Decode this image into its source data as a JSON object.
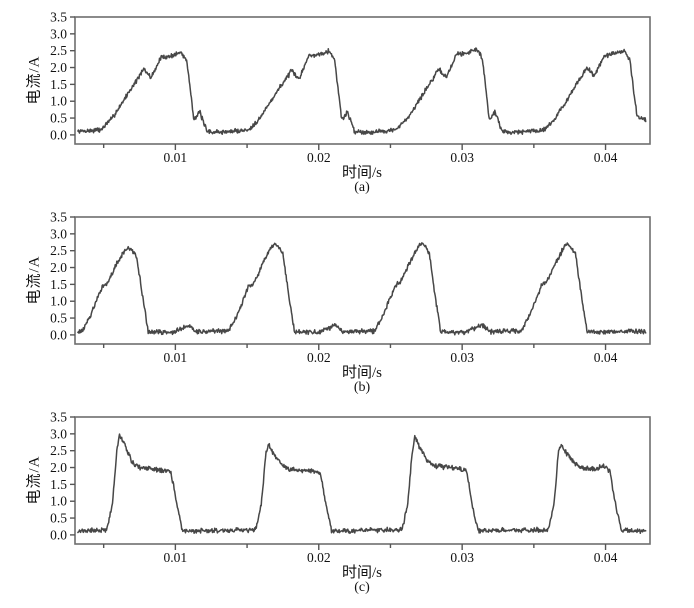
{
  "figure": {
    "background": "#ffffff",
    "curve_color": "#474747",
    "axis_color": "#6e6e6e",
    "tick_color": "#555555",
    "text_color": "#111111"
  },
  "chart_data": [
    {
      "type": "line",
      "label": "(a)",
      "xlabel": "时间/s",
      "ylabel": "电流/A",
      "xlim": [
        0.003,
        0.0431
      ],
      "ylim": [
        -0.27,
        3.5
      ],
      "x_major_ticks": [
        0.01,
        0.02,
        0.03,
        0.04
      ],
      "x_major_tick_labels": [
        "0.01",
        "0.02",
        "0.03",
        "0.04"
      ],
      "x_minor_ticks": [
        0.005,
        0.015,
        0.025,
        0.035
      ],
      "y_ticks": [
        0,
        0.5,
        1,
        1.5,
        2,
        2.5,
        3,
        3.5
      ],
      "y_tick_labels": [
        "0.0",
        "0.5",
        "1.0",
        "1.5",
        "2.0",
        "2.5",
        "3.0",
        "3.5"
      ],
      "period_s": 0.0103,
      "peak_times": [
        0.0104,
        0.0207,
        0.031,
        0.0413
      ],
      "peak_values": [
        2.45,
        2.5,
        2.55,
        2.5
      ],
      "noise_amp": 0.085,
      "seed": 7,
      "t_range": [
        0.0032,
        0.0428
      ],
      "envelope": [
        [
          0.0032,
          0.1
        ],
        [
          0.0048,
          0.15
        ],
        [
          0.0056,
          0.5
        ],
        [
          0.0068,
          1.3
        ],
        [
          0.0078,
          1.95
        ],
        [
          0.0083,
          1.7
        ],
        [
          0.009,
          2.3
        ],
        [
          0.0096,
          2.33
        ],
        [
          0.0104,
          2.45
        ],
        [
          0.0108,
          2.2
        ],
        [
          0.0113,
          0.45
        ],
        [
          0.0117,
          0.68
        ],
        [
          0.0122,
          0.1
        ],
        [
          0.0132,
          0.08
        ],
        [
          0.0151,
          0.15
        ],
        [
          0.0159,
          0.5
        ],
        [
          0.0171,
          1.3
        ],
        [
          0.0181,
          1.9
        ],
        [
          0.0186,
          1.65
        ],
        [
          0.0193,
          2.35
        ],
        [
          0.0199,
          2.38
        ],
        [
          0.0207,
          2.5
        ],
        [
          0.0211,
          2.25
        ],
        [
          0.0216,
          0.45
        ],
        [
          0.022,
          0.68
        ],
        [
          0.0225,
          0.1
        ],
        [
          0.0235,
          0.08
        ],
        [
          0.0254,
          0.15
        ],
        [
          0.0262,
          0.5
        ],
        [
          0.0274,
          1.3
        ],
        [
          0.0284,
          1.95
        ],
        [
          0.0289,
          1.7
        ],
        [
          0.0296,
          2.4
        ],
        [
          0.0302,
          2.42
        ],
        [
          0.031,
          2.55
        ],
        [
          0.0314,
          2.3
        ],
        [
          0.0319,
          0.45
        ],
        [
          0.0323,
          0.68
        ],
        [
          0.0328,
          0.1
        ],
        [
          0.0338,
          0.08
        ],
        [
          0.0357,
          0.15
        ],
        [
          0.0365,
          0.5
        ],
        [
          0.0377,
          1.3
        ],
        [
          0.0387,
          2.0
        ],
        [
          0.0392,
          1.75
        ],
        [
          0.0399,
          2.35
        ],
        [
          0.0405,
          2.4
        ],
        [
          0.0413,
          2.5
        ],
        [
          0.0417,
          2.2
        ],
        [
          0.0422,
          0.55
        ],
        [
          0.0428,
          0.45
        ]
      ]
    },
    {
      "type": "line",
      "label": "(b)",
      "xlabel": "时间/s",
      "ylabel": "电流/A",
      "xlim": [
        0.003,
        0.0431
      ],
      "ylim": [
        -0.27,
        3.5
      ],
      "x_major_ticks": [
        0.01,
        0.02,
        0.03,
        0.04
      ],
      "x_major_tick_labels": [
        "0.01",
        "0.02",
        "0.03",
        "0.04"
      ],
      "x_minor_ticks": [
        0.005,
        0.015,
        0.025,
        0.035
      ],
      "y_ticks": [
        0,
        0.5,
        1,
        1.5,
        2,
        2.5,
        3,
        3.5
      ],
      "y_tick_labels": [
        "0.0",
        "0.5",
        "1.0",
        "1.5",
        "2.0",
        "2.5",
        "3.0",
        "3.5"
      ],
      "period_s": 0.0102,
      "peak_times": [
        0.0068,
        0.017,
        0.0272,
        0.0374
      ],
      "peak_values": [
        2.6,
        2.7,
        2.75,
        2.7
      ],
      "noise_amp": 0.085,
      "seed": 13,
      "t_range": [
        0.0032,
        0.0428
      ],
      "envelope": [
        [
          0.0032,
          0.1
        ],
        [
          0.0035,
          0.12
        ],
        [
          0.004,
          0.5
        ],
        [
          0.0046,
          1.1
        ],
        [
          0.0049,
          1.45
        ],
        [
          0.0053,
          1.55
        ],
        [
          0.006,
          2.2
        ],
        [
          0.0065,
          2.5
        ],
        [
          0.0068,
          2.6
        ],
        [
          0.0073,
          2.3
        ],
        [
          0.0077,
          1.2
        ],
        [
          0.0081,
          0.1
        ],
        [
          0.0098,
          0.07
        ],
        [
          0.011,
          0.28
        ],
        [
          0.0115,
          0.1
        ],
        [
          0.0137,
          0.12
        ],
        [
          0.0142,
          0.5
        ],
        [
          0.0148,
          1.1
        ],
        [
          0.0151,
          1.45
        ],
        [
          0.0155,
          1.55
        ],
        [
          0.0162,
          2.2
        ],
        [
          0.0167,
          2.6
        ],
        [
          0.017,
          2.7
        ],
        [
          0.0175,
          2.4
        ],
        [
          0.0179,
          1.2
        ],
        [
          0.0183,
          0.1
        ],
        [
          0.02,
          0.07
        ],
        [
          0.0212,
          0.28
        ],
        [
          0.0217,
          0.1
        ],
        [
          0.0239,
          0.12
        ],
        [
          0.0244,
          0.5
        ],
        [
          0.025,
          1.1
        ],
        [
          0.0253,
          1.45
        ],
        [
          0.0257,
          1.6
        ],
        [
          0.0264,
          2.2
        ],
        [
          0.0269,
          2.6
        ],
        [
          0.0272,
          2.75
        ],
        [
          0.0277,
          2.45
        ],
        [
          0.0281,
          1.2
        ],
        [
          0.0285,
          0.1
        ],
        [
          0.0302,
          0.07
        ],
        [
          0.0314,
          0.28
        ],
        [
          0.0319,
          0.1
        ],
        [
          0.0341,
          0.12
        ],
        [
          0.0346,
          0.5
        ],
        [
          0.0352,
          1.1
        ],
        [
          0.0355,
          1.45
        ],
        [
          0.0359,
          1.6
        ],
        [
          0.0366,
          2.2
        ],
        [
          0.0371,
          2.6
        ],
        [
          0.0374,
          2.7
        ],
        [
          0.0379,
          2.4
        ],
        [
          0.0383,
          1.2
        ],
        [
          0.0387,
          0.1
        ],
        [
          0.0405,
          0.08
        ],
        [
          0.042,
          0.12
        ],
        [
          0.0428,
          0.1
        ]
      ]
    },
    {
      "type": "line",
      "label": "(c)",
      "xlabel": "时间/s",
      "ylabel": "电流/A",
      "xlim": [
        0.003,
        0.0431
      ],
      "ylim": [
        -0.27,
        3.5
      ],
      "x_major_ticks": [
        0.01,
        0.02,
        0.03,
        0.04
      ],
      "x_major_tick_labels": [
        "0.01",
        "0.02",
        "0.03",
        "0.04"
      ],
      "x_minor_ticks": [
        0.005,
        0.015,
        0.025,
        0.035
      ],
      "y_ticks": [
        0,
        0.5,
        1,
        1.5,
        2,
        2.5,
        3,
        3.5
      ],
      "y_tick_labels": [
        "0.0",
        "0.5",
        "1.0",
        "1.5",
        "2.0",
        "2.5",
        "3.0",
        "3.5"
      ],
      "period_s": 0.0102,
      "peak_times": [
        0.0061,
        0.0165,
        0.0267,
        0.0369
      ],
      "peak_values": [
        3.0,
        2.7,
        2.9,
        2.7
      ],
      "plateau_value": 1.95,
      "noise_amp": 0.085,
      "seed": 21,
      "t_range": [
        0.0032,
        0.0428
      ],
      "envelope": [
        [
          0.0032,
          0.12
        ],
        [
          0.0052,
          0.15
        ],
        [
          0.0056,
          0.9
        ],
        [
          0.0059,
          2.4
        ],
        [
          0.0061,
          3.0
        ],
        [
          0.0065,
          2.65
        ],
        [
          0.007,
          2.15
        ],
        [
          0.0075,
          2.0
        ],
        [
          0.0085,
          1.95
        ],
        [
          0.0093,
          1.9
        ],
        [
          0.0097,
          1.85
        ],
        [
          0.0101,
          0.9
        ],
        [
          0.0105,
          0.12
        ],
        [
          0.0156,
          0.15
        ],
        [
          0.016,
          0.9
        ],
        [
          0.0163,
          2.4
        ],
        [
          0.0165,
          2.7
        ],
        [
          0.0169,
          2.35
        ],
        [
          0.0174,
          2.1
        ],
        [
          0.0179,
          1.95
        ],
        [
          0.0189,
          1.9
        ],
        [
          0.0197,
          1.9
        ],
        [
          0.0201,
          1.85
        ],
        [
          0.0205,
          0.9
        ],
        [
          0.0209,
          0.12
        ],
        [
          0.0258,
          0.15
        ],
        [
          0.0262,
          0.9
        ],
        [
          0.0265,
          2.4
        ],
        [
          0.0267,
          2.9
        ],
        [
          0.0271,
          2.55
        ],
        [
          0.0276,
          2.2
        ],
        [
          0.0281,
          2.05
        ],
        [
          0.0291,
          2.0
        ],
        [
          0.0299,
          1.95
        ],
        [
          0.0303,
          1.9
        ],
        [
          0.0307,
          0.9
        ],
        [
          0.0311,
          0.12
        ],
        [
          0.036,
          0.15
        ],
        [
          0.0364,
          0.9
        ],
        [
          0.0367,
          2.4
        ],
        [
          0.0369,
          2.7
        ],
        [
          0.0373,
          2.4
        ],
        [
          0.0378,
          2.15
        ],
        [
          0.0383,
          2.0
        ],
        [
          0.0393,
          1.95
        ],
        [
          0.0399,
          2.05
        ],
        [
          0.0403,
          1.9
        ],
        [
          0.0407,
          0.9
        ],
        [
          0.0411,
          0.12
        ],
        [
          0.0428,
          0.12
        ]
      ]
    }
  ]
}
